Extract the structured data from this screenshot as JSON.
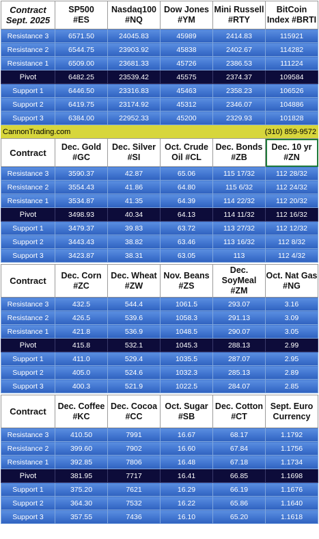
{
  "banner": {
    "left": "CannonTrading.com",
    "right": "(310) 859-9572"
  },
  "row_labels": [
    "Resistance 3",
    "Resistance 2",
    "Resistance 1",
    "Pivot",
    "Support 1",
    "Support 2",
    "Support 3"
  ],
  "tables": [
    {
      "corner": [
        "Contract",
        "Sept. 2025"
      ],
      "headers": [
        [
          "SP500",
          "#ES"
        ],
        [
          "Nasdaq100",
          "#NQ"
        ],
        [
          "Dow Jones",
          "#YM"
        ],
        [
          "Mini Russell",
          "#RTY"
        ],
        [
          "BitCoin",
          "Index #BRTI"
        ]
      ],
      "rows": [
        [
          "6571.50",
          "24045.83",
          "45989",
          "2414.83",
          "115921"
        ],
        [
          "6544.75",
          "23903.92",
          "45838",
          "2402.67",
          "114282"
        ],
        [
          "6509.00",
          "23681.33",
          "45726",
          "2386.53",
          "111224"
        ],
        [
          "6482.25",
          "23539.42",
          "45575",
          "2374.37",
          "109584"
        ],
        [
          "6446.50",
          "23316.83",
          "45463",
          "2358.23",
          "106526"
        ],
        [
          "6419.75",
          "23174.92",
          "45312",
          "2346.07",
          "104886"
        ],
        [
          "6384.00",
          "22952.33",
          "45200",
          "2329.93",
          "101828"
        ]
      ]
    },
    {
      "corner": [
        "Contract"
      ],
      "headers": [
        [
          "Dec. Gold",
          "#GC"
        ],
        [
          "Dec. Silver",
          "#SI"
        ],
        [
          "Oct. Crude",
          "Oil #CL"
        ],
        [
          "Dec. Bonds",
          "#ZB"
        ],
        [
          "Dec. 10 yr",
          "#ZN"
        ]
      ],
      "rows": [
        [
          "3590.37",
          "42.87",
          "65.06",
          "115 17/32",
          "112 28/32"
        ],
        [
          "3554.43",
          "41.86",
          "64.80",
          "115  6/32",
          "112 24/32"
        ],
        [
          "3534.87",
          "41.35",
          "64.39",
          "114 22/32",
          "112 20/32"
        ],
        [
          "3498.93",
          "40.34",
          "64.13",
          "114 11/32",
          "112 16/32"
        ],
        [
          "3479.37",
          "39.83",
          "63.72",
          "113 27/32",
          "112 12/32"
        ],
        [
          "3443.43",
          "38.82",
          "63.46",
          "113 16/32",
          "112  8/32"
        ],
        [
          "3423.87",
          "38.31",
          "63.05",
          "113",
          "112  4/32"
        ]
      ]
    },
    {
      "corner": [
        "Contract"
      ],
      "headers": [
        [
          "Dec. Corn",
          "#ZC"
        ],
        [
          "Dec.  Wheat",
          "#ZW"
        ],
        [
          "Nov. Beans",
          "#ZS"
        ],
        [
          "Dec.",
          "SoyMeal",
          "#ZM"
        ],
        [
          "Oct. Nat Gas",
          "#NG"
        ]
      ],
      "rows": [
        [
          "432.5",
          "544.4",
          "1061.5",
          "293.07",
          "3.16"
        ],
        [
          "426.5",
          "539.6",
          "1058.3",
          "291.13",
          "3.09"
        ],
        [
          "421.8",
          "536.9",
          "1048.5",
          "290.07",
          "3.05"
        ],
        [
          "415.8",
          "532.1",
          "1045.3",
          "288.13",
          "2.99"
        ],
        [
          "411.0",
          "529.4",
          "1035.5",
          "287.07",
          "2.95"
        ],
        [
          "405.0",
          "524.6",
          "1032.3",
          "285.13",
          "2.89"
        ],
        [
          "400.3",
          "521.9",
          "1022.5",
          "284.07",
          "2.85"
        ]
      ]
    },
    {
      "corner": [
        "Contract"
      ],
      "headers": [
        [
          "Dec. Coffee",
          "#KC"
        ],
        [
          "Dec. Cocoa",
          "#CC"
        ],
        [
          "Oct. Sugar",
          "#SB"
        ],
        [
          "Dec. Cotton",
          "#CT"
        ],
        [
          "Sept. Euro",
          "Currency"
        ]
      ],
      "rows": [
        [
          "410.50",
          "7991",
          "16.67",
          "68.17",
          "1.1792"
        ],
        [
          "399.60",
          "7902",
          "16.60",
          "67.84",
          "1.1756"
        ],
        [
          "392.85",
          "7806",
          "16.48",
          "67.18",
          "1.1734"
        ],
        [
          "381.95",
          "7717",
          "16.41",
          "66.85",
          "1.1698"
        ],
        [
          "375.20",
          "7621",
          "16.29",
          "66.19",
          "1.1676"
        ],
        [
          "364.30",
          "7532",
          "16.22",
          "65.86",
          "1.1640"
        ],
        [
          "357.55",
          "7436",
          "16.10",
          "65.20",
          "1.1618"
        ]
      ]
    }
  ]
}
